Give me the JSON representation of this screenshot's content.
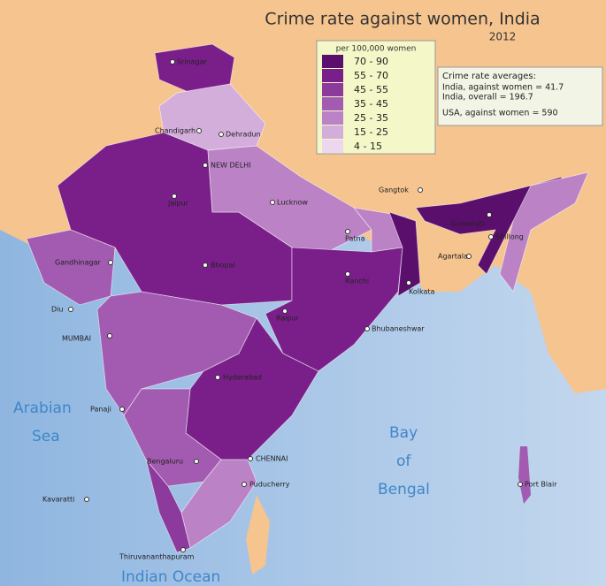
{
  "title": "Crime rate against women, India",
  "subtitle": "2012",
  "legend": {
    "title": "per 100,000 women",
    "items": [
      {
        "label": "70 - 90",
        "color": "#5b0f6d"
      },
      {
        "label": "55 - 70",
        "color": "#7a1f8a"
      },
      {
        "label": "45 - 55",
        "color": "#8c3a9c"
      },
      {
        "label": "35 - 45",
        "color": "#a25bb0"
      },
      {
        "label": "25 - 35",
        "color": "#bb82c6"
      },
      {
        "label": "15 - 25",
        "color": "#d4aedb"
      },
      {
        "label": "4 - 15",
        "color": "#ecd7ef"
      }
    ]
  },
  "info_box": {
    "heading": "Crime rate averages:",
    "lines": [
      "India, against women = 41.7",
      "India, overall = 196.7",
      "USA, against women = 590"
    ]
  },
  "water_labels": [
    "Arabian",
    "Sea",
    "Bay",
    "of",
    "Bengal",
    "Indian Ocean"
  ],
  "cities": [
    "Srinagar",
    "Chandigarh",
    "Dehradun",
    "NEW DELHI",
    "Jaipur",
    "Lucknow",
    "Patna",
    "Gandhinagar",
    "Bhopal",
    "Ranchi",
    "Kolkata",
    "Raipur",
    "Diu",
    "MUMBAI",
    "Bhubaneshwar",
    "Hyderabad",
    "Panaji",
    "Bengaluru",
    "CHENNAI",
    "Puducherry",
    "Thiruvananthapuram",
    "Gangtok",
    "Guwahati",
    "Shillong",
    "Agartala",
    "Port Blair",
    "Kavaratti"
  ]
}
